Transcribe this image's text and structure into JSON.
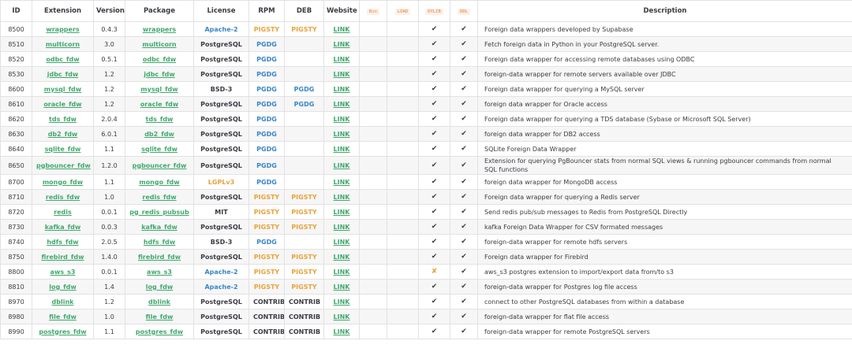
{
  "table": {
    "columns": [
      "ID",
      "Extension",
      "Version",
      "Package",
      "License",
      "RPM",
      "DEB",
      "Website",
      "Bin",
      "LOAD",
      "DYLIB",
      "DDL",
      "Description"
    ],
    "rows": [
      [
        "8500",
        "wrappers",
        "0.4.3",
        "wrappers",
        {
          "text": "Apache-2",
          "color": "#3a86c8"
        },
        {
          "text": "PIGSTY",
          "color": "#e8a33d"
        },
        {
          "text": "PIGSTY",
          "color": "#e8a33d"
        },
        "LINK",
        null,
        null,
        "✔",
        "✔",
        "Foreign data wrappers developed by Supabase"
      ],
      [
        "8510",
        "multicorn",
        "3.0",
        "multicorn",
        {
          "text": "PostgreSQL",
          "color": "#3c3c43"
        },
        {
          "text": "PGDG",
          "color": "#3a86c8"
        },
        null,
        "LINK",
        null,
        null,
        "✔",
        "✔",
        "Fetch foreign data in Python in your PostgreSQL server."
      ],
      [
        "8520",
        "odbc_fdw",
        "0.5.1",
        "odbc_fdw",
        {
          "text": "PostgreSQL",
          "color": "#3c3c43"
        },
        {
          "text": "PGDG",
          "color": "#3a86c8"
        },
        null,
        "LINK",
        null,
        null,
        "✔",
        "✔",
        "Foreign data wrapper for accessing remote databases using ODBC"
      ],
      [
        "8530",
        "jdbc_fdw",
        "1.2",
        "jdbc_fdw",
        {
          "text": "PostgreSQL",
          "color": "#3c3c43"
        },
        {
          "text": "PGDG",
          "color": "#3a86c8"
        },
        null,
        "LINK",
        null,
        null,
        "✔",
        "✔",
        "foreign-data wrapper for remote servers available over JDBC"
      ],
      [
        "8600",
        "mysql_fdw",
        "1.2",
        "mysql_fdw",
        {
          "text": "BSD-3",
          "color": "#3c3c43"
        },
        {
          "text": "PGDG",
          "color": "#3a86c8"
        },
        {
          "text": "PGDG",
          "color": "#3a86c8"
        },
        "LINK",
        null,
        null,
        "✔",
        "✔",
        "Foreign data wrapper for querying a MySQL server"
      ],
      [
        "8610",
        "oracle_fdw",
        "1.2",
        "oracle_fdw",
        {
          "text": "PostgreSQL",
          "color": "#3c3c43"
        },
        {
          "text": "PGDG",
          "color": "#3a86c8"
        },
        {
          "text": "PGDG",
          "color": "#3a86c8"
        },
        "LINK",
        null,
        null,
        "✔",
        "✔",
        "foreign data wrapper for Oracle access"
      ],
      [
        "8620",
        "tds_fdw",
        "2.0.4",
        "tds_fdw",
        {
          "text": "PostgreSQL",
          "color": "#3c3c43"
        },
        {
          "text": "PGDG",
          "color": "#3a86c8"
        },
        null,
        "LINK",
        null,
        null,
        "✔",
        "✔",
        "Foreign data wrapper for querying a TDS database (Sybase or Microsoft SQL Server)"
      ],
      [
        "8630",
        "db2_fdw",
        "6.0.1",
        "db2_fdw",
        {
          "text": "PostgreSQL",
          "color": "#3c3c43"
        },
        {
          "text": "PGDG",
          "color": "#3a86c8"
        },
        null,
        "LINK",
        null,
        null,
        "✔",
        "✔",
        "foreign data wrapper for DB2 access"
      ],
      [
        "8640",
        "sqlite_fdw",
        "1.1",
        "sqlite_fdw",
        {
          "text": "PostgreSQL",
          "color": "#3c3c43"
        },
        {
          "text": "PGDG",
          "color": "#3a86c8"
        },
        null,
        "LINK",
        null,
        null,
        "✔",
        "✔",
        "SQLite Foreign Data Wrapper"
      ],
      [
        "8650",
        "pgbouncer_fdw",
        "1.2.0",
        "pgbouncer_fdw",
        {
          "text": "PostgreSQL",
          "color": "#3c3c43"
        },
        {
          "text": "PGDG",
          "color": "#3a86c8"
        },
        null,
        "LINK",
        null,
        null,
        "✔",
        "✔",
        "Extension for querying PgBouncer stats from normal SQL views & running pgbouncer commands from normal SQL functions"
      ],
      [
        "8700",
        "mongo_fdw",
        "1.1",
        "mongo_fdw",
        {
          "text": "LGPLv3",
          "color": "#e8a33d"
        },
        {
          "text": "PGDG",
          "color": "#3a86c8"
        },
        null,
        "LINK",
        null,
        null,
        "✔",
        "✔",
        "foreign data wrapper for MongoDB access"
      ],
      [
        "8710",
        "redis_fdw",
        "1.0",
        "redis_fdw",
        {
          "text": "PostgreSQL",
          "color": "#3c3c43"
        },
        {
          "text": "PIGSTY",
          "color": "#e8a33d"
        },
        {
          "text": "PIGSTY",
          "color": "#e8a33d"
        },
        "LINK",
        null,
        null,
        "✔",
        "✔",
        "Foreign data wrapper for querying a Redis server"
      ],
      [
        "8720",
        "redis",
        "0.0.1",
        "pg_redis_pubsub",
        {
          "text": "MIT",
          "color": "#3c3c43"
        },
        {
          "text": "PIGSTY",
          "color": "#e8a33d"
        },
        {
          "text": "PIGSTY",
          "color": "#e8a33d"
        },
        "LINK",
        null,
        null,
        "✔",
        "✔",
        "Send redis pub/sub messages to Redis from PostgreSQL Directly"
      ],
      [
        "8730",
        "kafka_fdw",
        "0.0.3",
        "kafka_fdw",
        {
          "text": "PostgreSQL",
          "color": "#3c3c43"
        },
        {
          "text": "PIGSTY",
          "color": "#e8a33d"
        },
        {
          "text": "PIGSTY",
          "color": "#e8a33d"
        },
        "LINK",
        null,
        null,
        "✔",
        "✔",
        "kafka Foreign Data Wrapper for CSV formated messages"
      ],
      [
        "8740",
        "hdfs_fdw",
        "2.0.5",
        "hdfs_fdw",
        {
          "text": "BSD-3",
          "color": "#3c3c43"
        },
        {
          "text": "PGDG",
          "color": "#3a86c8"
        },
        null,
        "LINK",
        null,
        null,
        "✔",
        "✔",
        "foreign-data wrapper for remote hdfs servers"
      ],
      [
        "8750",
        "firebird_fdw",
        "1.4.0",
        "firebird_fdw",
        {
          "text": "PostgreSQL",
          "color": "#3c3c43"
        },
        {
          "text": "PIGSTY",
          "color": "#e8a33d"
        },
        {
          "text": "PIGSTY",
          "color": "#e8a33d"
        },
        "LINK",
        null,
        null,
        "✔",
        "✔",
        "Foreign data wrapper for Firebird"
      ],
      [
        "8800",
        "aws_s3",
        "0.0.1",
        "aws_s3",
        {
          "text": "Apache-2",
          "color": "#3a86c8"
        },
        {
          "text": "PIGSTY",
          "color": "#e8a33d"
        },
        {
          "text": "PIGSTY",
          "color": "#e8a33d"
        },
        "LINK",
        null,
        null,
        {
          "text": "✘",
          "color": "#e8a33d"
        },
        "✔",
        "aws_s3 postgres extension to import/export data from/to s3"
      ],
      [
        "8810",
        "log_fdw",
        "1.4",
        "log_fdw",
        {
          "text": "Apache-2",
          "color": "#3a86c8"
        },
        {
          "text": "PIGSTY",
          "color": "#e8a33d"
        },
        {
          "text": "PIGSTY",
          "color": "#e8a33d"
        },
        "LINK",
        null,
        null,
        "✔",
        "✔",
        "foreign-data wrapper for Postgres log file access"
      ],
      [
        "8970",
        "dblink",
        "1.2",
        "dblink",
        {
          "text": "PostgreSQL",
          "color": "#3c3c43"
        },
        {
          "text": "CONTRIB",
          "color": "#3c3c43"
        },
        {
          "text": "CONTRIB",
          "color": "#3c3c43"
        },
        "LINK",
        null,
        null,
        "✔",
        "✔",
        "connect to other PostgreSQL databases from within a database"
      ],
      [
        "8980",
        "file_fdw",
        "1.0",
        "file_fdw",
        {
          "text": "PostgreSQL",
          "color": "#3c3c43"
        },
        {
          "text": "CONTRIB",
          "color": "#3c3c43"
        },
        {
          "text": "CONTRIB",
          "color": "#3c3c43"
        },
        "LINK",
        null,
        null,
        "✔",
        "✔",
        "foreign-data wrapper for flat file access"
      ],
      [
        "8990",
        "postgres_fdw",
        "1.1",
        "postgres_fdw",
        {
          "text": "PostgreSQL",
          "color": "#3c3c43"
        },
        {
          "text": "CONTRIB",
          "color": "#3c3c43"
        },
        {
          "text": "CONTRIB",
          "color": "#3c3c43"
        },
        "LINK",
        null,
        null,
        "✔",
        "✔",
        "foreign-data wrapper for remote PostgreSQL servers"
      ]
    ]
  }
}
